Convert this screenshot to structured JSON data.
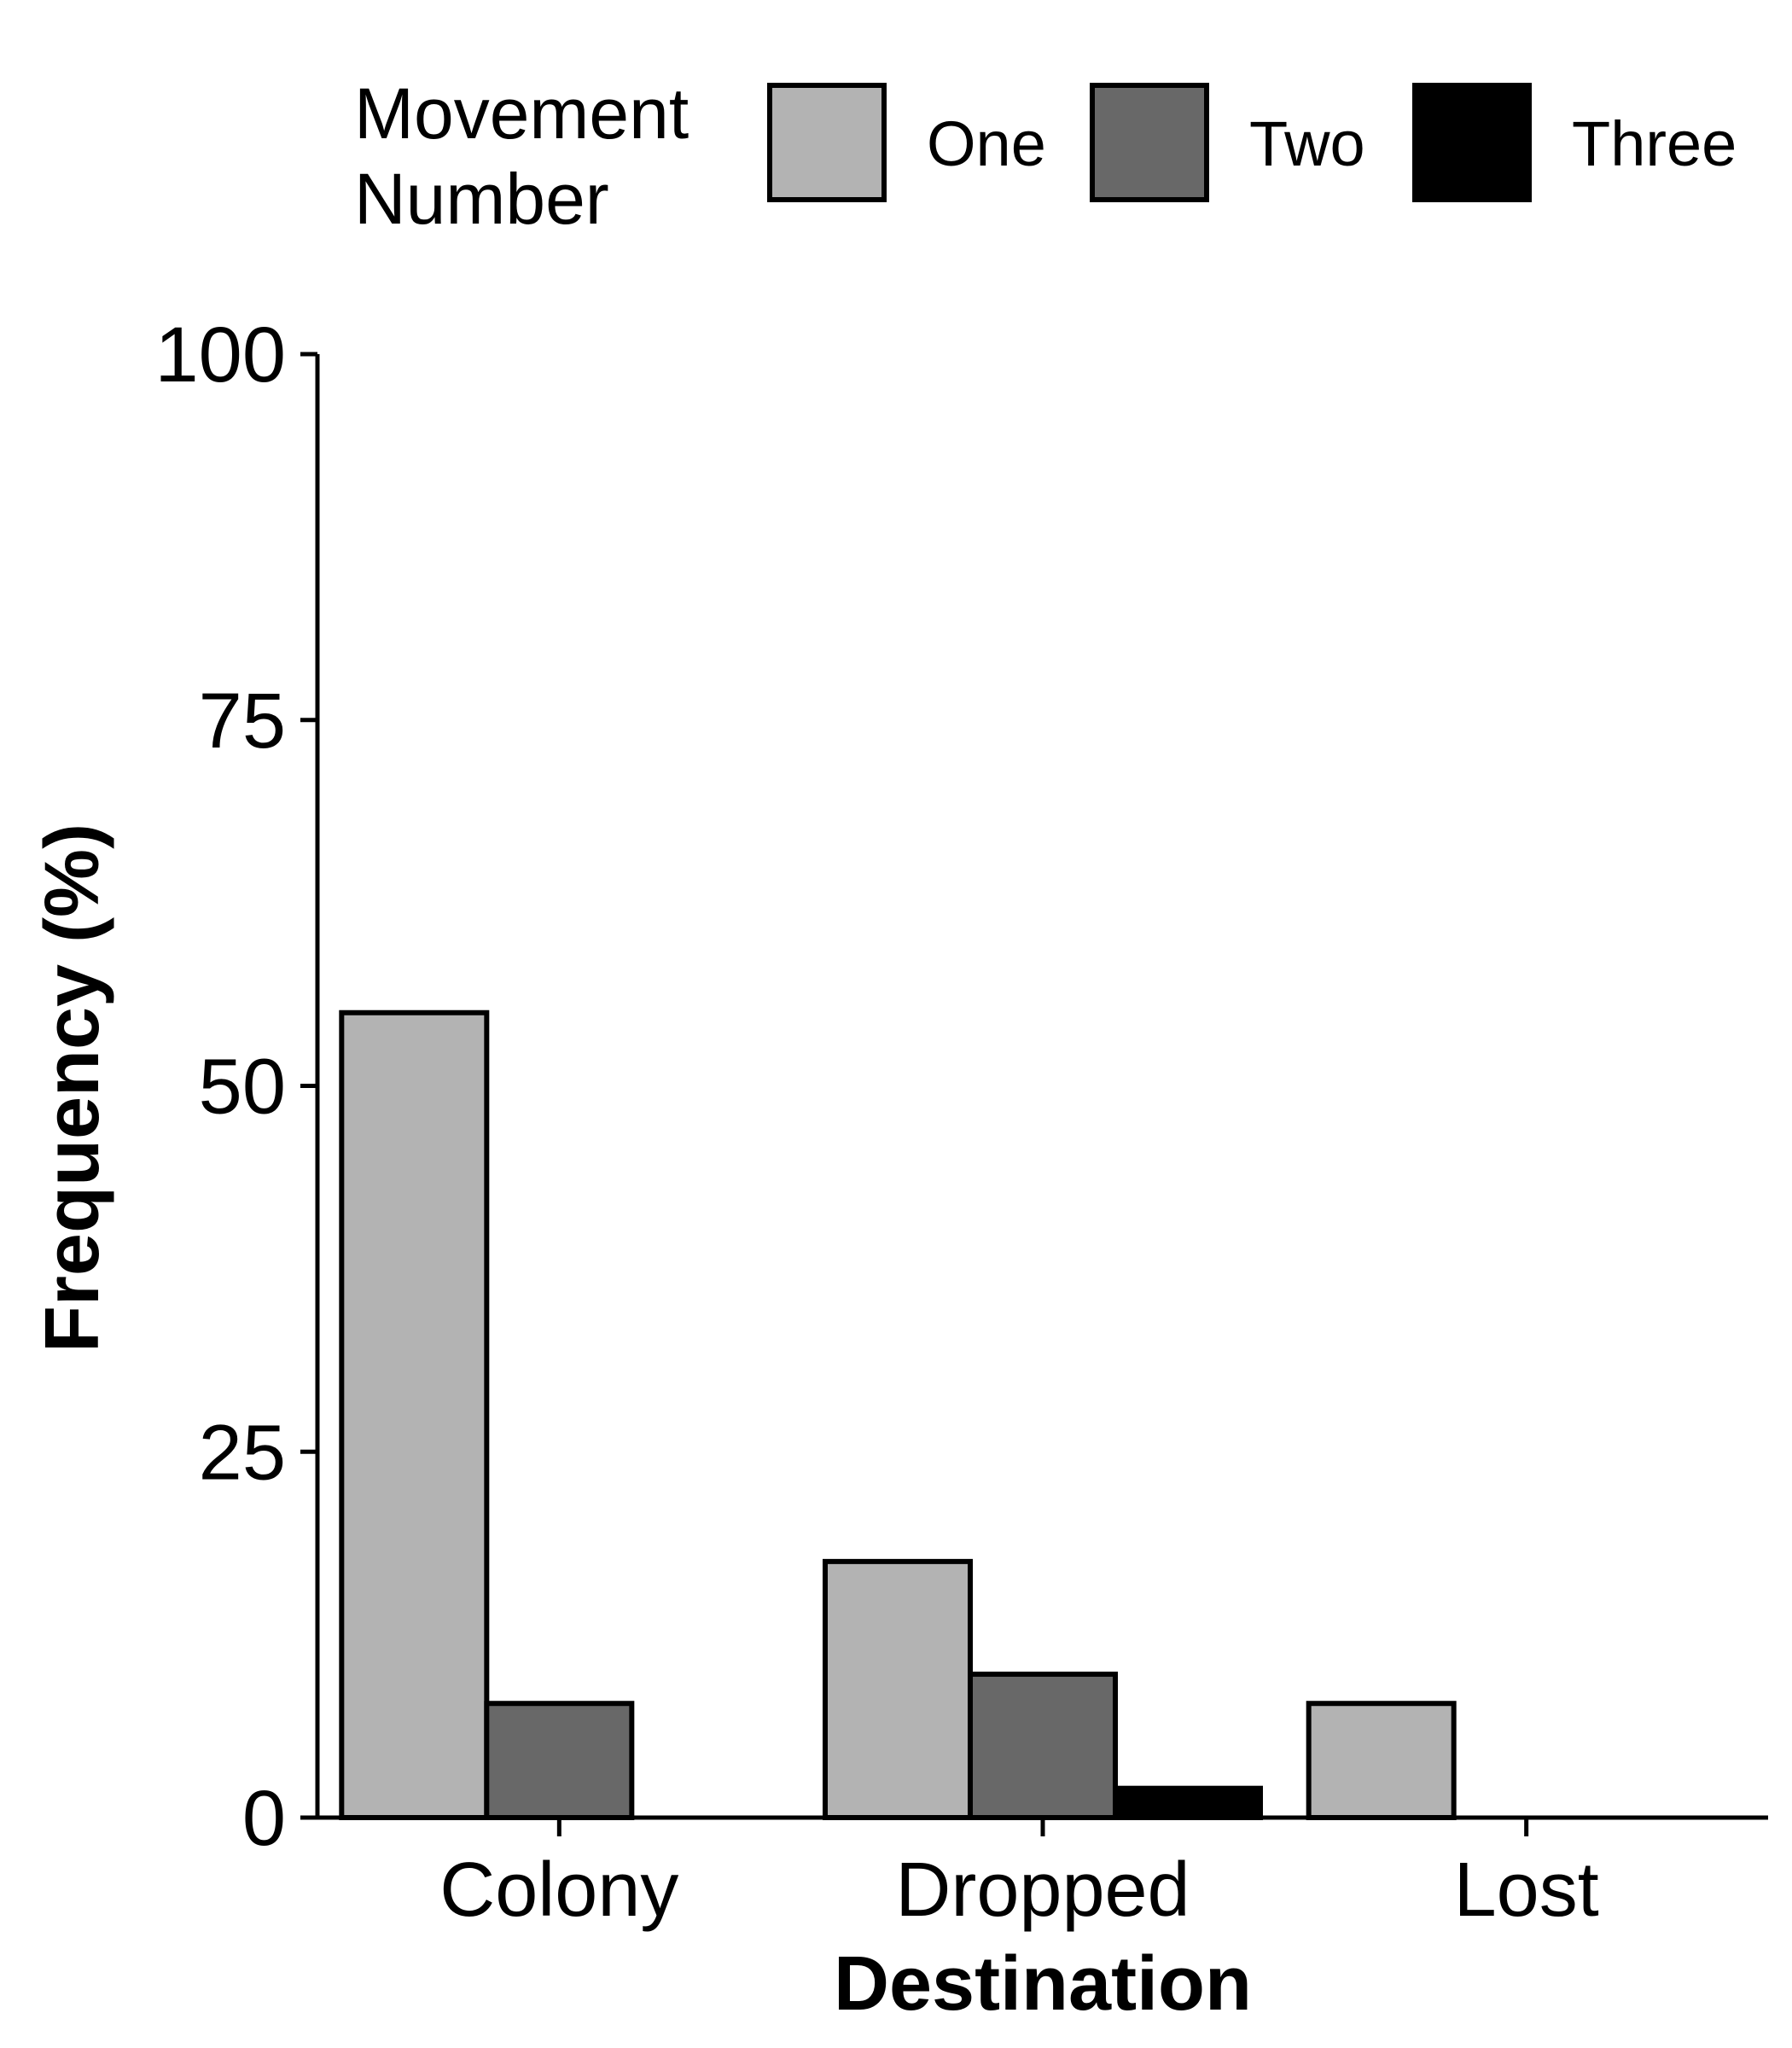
{
  "chart_data": {
    "type": "bar",
    "xlabel": "Destination",
    "ylabel": "Frequency (%)",
    "ylim": [
      0,
      100
    ],
    "yticks": [
      0,
      25,
      50,
      75,
      100
    ],
    "categories": [
      "Colony",
      "Dropped",
      "Lost"
    ],
    "legend": {
      "title_line1": "Movement",
      "title_line2": "Number",
      "placement": "top"
    },
    "series": [
      {
        "name": "One",
        "color": "#b3b3b3",
        "values": [
          55,
          17.5,
          7.8
        ]
      },
      {
        "name": "Two",
        "color": "#686868",
        "values": [
          7.8,
          9.8,
          null
        ]
      },
      {
        "name": "Three",
        "color": "#000000",
        "values": [
          null,
          2,
          null
        ]
      }
    ],
    "grid": false
  }
}
